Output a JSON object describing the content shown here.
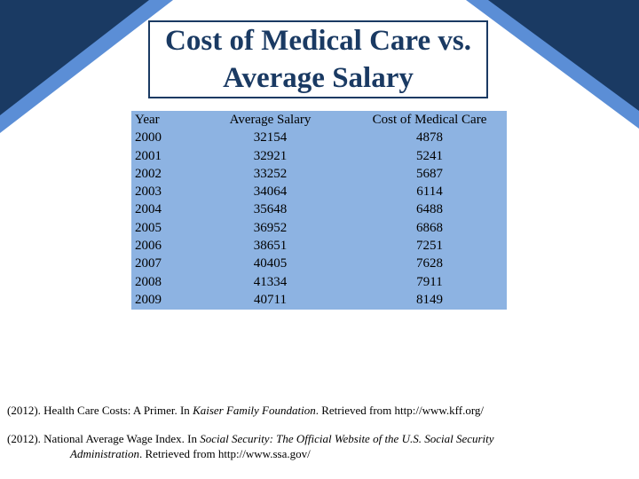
{
  "slide": {
    "title_line1": "Cost of Medical Care vs.",
    "title_line2": "Average Salary"
  },
  "colors": {
    "dark_navy": "#1a3a63",
    "accent_blue": "#5b8ed6",
    "table_fill": "#8db3e2"
  },
  "table": {
    "headers": [
      "Year",
      "Average Salary",
      "Cost of Medical Care"
    ],
    "rows": [
      [
        "2000",
        "32154",
        "4878"
      ],
      [
        "2001",
        "32921",
        "5241"
      ],
      [
        "2002",
        "33252",
        "5687"
      ],
      [
        "2003",
        "34064",
        "6114"
      ],
      [
        "2004",
        "35648",
        "6488"
      ],
      [
        "2005",
        "36952",
        "6868"
      ],
      [
        "2006",
        "38651",
        "7251"
      ],
      [
        "2007",
        "40405",
        "7628"
      ],
      [
        "2008",
        "41334",
        "7911"
      ],
      [
        "2009",
        "40711",
        "8149"
      ]
    ]
  },
  "references": [
    {
      "prefix": "(2012). Health Care Costs: A Primer. In ",
      "italic": "Kaiser Family Foundation",
      "suffix": ". Retrieved from http://www.kff.org/"
    },
    {
      "prefix": "(2012). National Average Wage Index. In ",
      "italic": "Social Security: The Official Website of the U.S. Social Security Administration",
      "suffix": ". Retrieved from http://www.ssa.gov/"
    }
  ]
}
